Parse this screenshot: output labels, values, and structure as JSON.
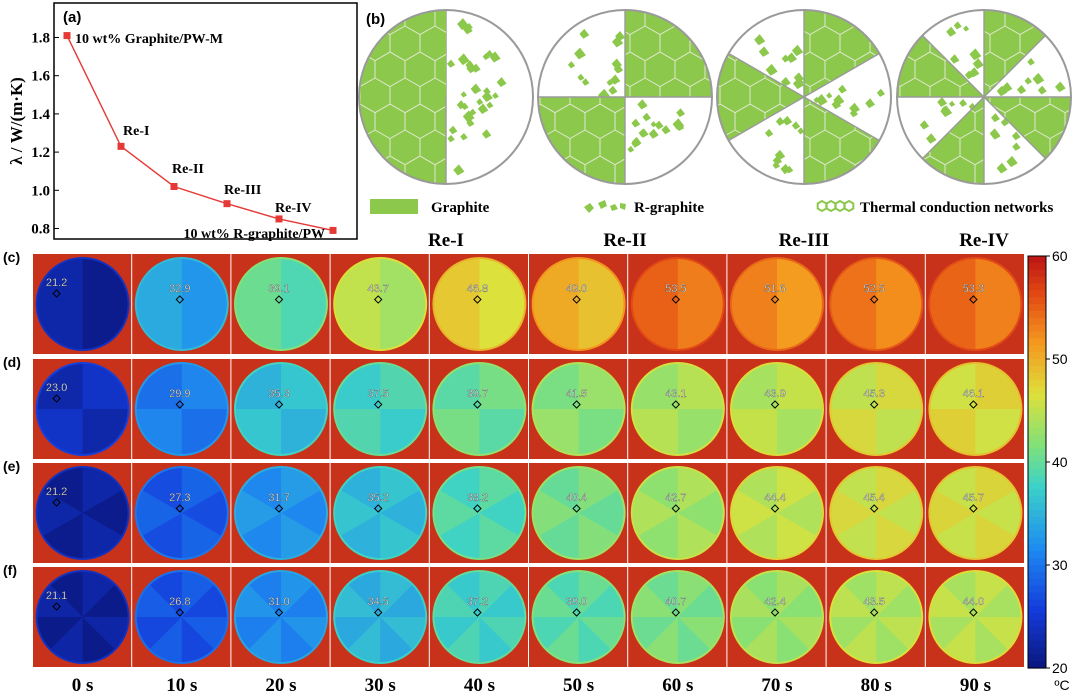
{
  "panel_a": {
    "tag": "(a)",
    "ylabel": "λ / W/(m·K)",
    "yticks": [
      "0.8",
      "1.0",
      "1.2",
      "1.4",
      "1.6",
      "1.8"
    ],
    "point_labels": [
      "10 wt% Graphite/PW-M",
      "Re-I",
      "Re-II",
      "Re-III",
      "Re-IV",
      "10 wt% R-graphite/PW"
    ],
    "color": "#e53935"
  },
  "chart_data": {
    "type": "line",
    "x": [
      1,
      2,
      3,
      4,
      5,
      6
    ],
    "y": [
      1.81,
      1.23,
      1.02,
      0.93,
      0.85,
      0.79
    ],
    "point_labels": [
      "10 wt% Graphite/PW-M",
      "Re-I",
      "Re-II",
      "Re-III",
      "Re-IV",
      "10 wt% R-graphite/PW"
    ],
    "ylabel": "λ / W/(m·K)",
    "ylim": [
      0.75,
      1.88
    ],
    "grid": false
  },
  "panel_b": {
    "tag": "(b)",
    "legend": {
      "graphite": "Graphite",
      "rgraphite": "R-graphite",
      "network": "Thermal conduction networks"
    },
    "disks": [
      {
        "label": "Re-I",
        "sectors": 2
      },
      {
        "label": "Re-II",
        "sectors": 4
      },
      {
        "label": "Re-III",
        "sectors": 6
      },
      {
        "label": "Re-IV",
        "sectors": 8
      }
    ],
    "graphite_color": "#8cc84b"
  },
  "thermal": {
    "rows": [
      {
        "tag": "(c)",
        "temps": [
          "21.2",
          "32.9",
          "39.1",
          "43.7",
          "46.8",
          "49.0",
          "53.5",
          "51.6",
          "52.5",
          "53.3"
        ],
        "sectors": 2
      },
      {
        "tag": "(d)",
        "temps": [
          "23.0",
          "29.9",
          "35.3",
          "37.5",
          "39.7",
          "41.5",
          "43.1",
          "43.9",
          "45.3",
          "46.1"
        ],
        "sectors": 4
      },
      {
        "tag": "(e)",
        "temps": [
          "21.2",
          "27.3",
          "31.7",
          "35.2",
          "38.2",
          "40.4",
          "42.7",
          "44.4",
          "45.4",
          "45.7"
        ],
        "sectors": 6
      },
      {
        "tag": "(f)",
        "temps": [
          "21.1",
          "26.8",
          "31.0",
          "34.5",
          "37.2",
          "39.0",
          "40.7",
          "42.4",
          "43.5",
          "44.0"
        ],
        "sectors": 8
      }
    ],
    "times": [
      "0 s",
      "10 s",
      "20 s",
      "30 s",
      "40 s",
      "50 s",
      "60 s",
      "70 s",
      "80 s",
      "90 s"
    ],
    "colorbar": {
      "ticks": [
        "20",
        "30",
        "40",
        "50",
        "60"
      ],
      "unit": "ºC",
      "min": 20,
      "max": 60
    }
  }
}
